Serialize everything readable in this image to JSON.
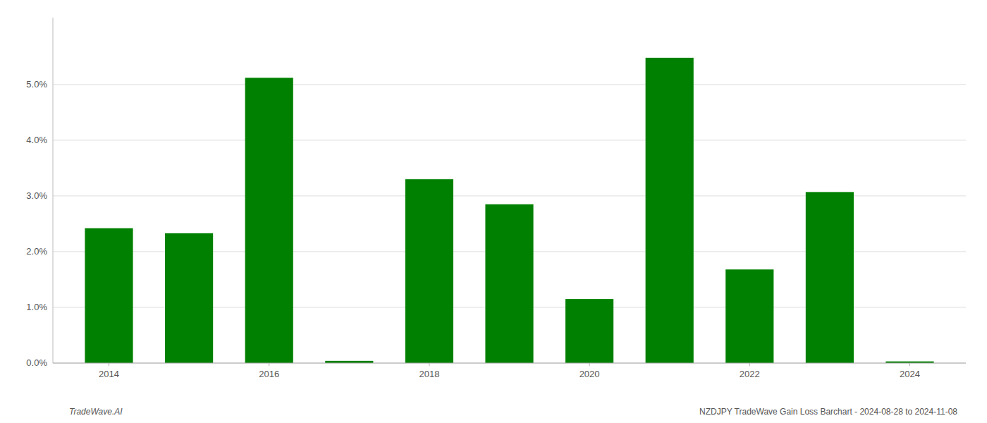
{
  "chart_data": {
    "type": "bar",
    "x": [
      2014,
      2015,
      2016,
      2017,
      2018,
      2019,
      2020,
      2021,
      2022,
      2023,
      2024
    ],
    "values": [
      0.0242,
      0.0233,
      0.0512,
      0.0004,
      0.033,
      0.0285,
      0.0115,
      0.0548,
      0.0168,
      0.0307,
      0.0003
    ],
    "color": "#008000",
    "xlim": [
      2013.3,
      2024.7
    ],
    "xticks": [
      2014,
      2016,
      2018,
      2020,
      2022,
      2024
    ],
    "ylim": [
      0,
      0.062
    ],
    "yticks": [
      {
        "value": 0.0,
        "label": "0.0%"
      },
      {
        "value": 0.01,
        "label": "1.0%"
      },
      {
        "value": 0.02,
        "label": "2.0%"
      },
      {
        "value": 0.03,
        "label": "3.0%"
      },
      {
        "value": 0.04,
        "label": "4.0%"
      },
      {
        "value": 0.05,
        "label": "5.0%"
      }
    ],
    "grid": true,
    "annotations": [
      "TradeWave.AI",
      "NZDJPY TradeWave Gain Loss Barchart - 2024-08-28 to 2024-11-08"
    ]
  }
}
